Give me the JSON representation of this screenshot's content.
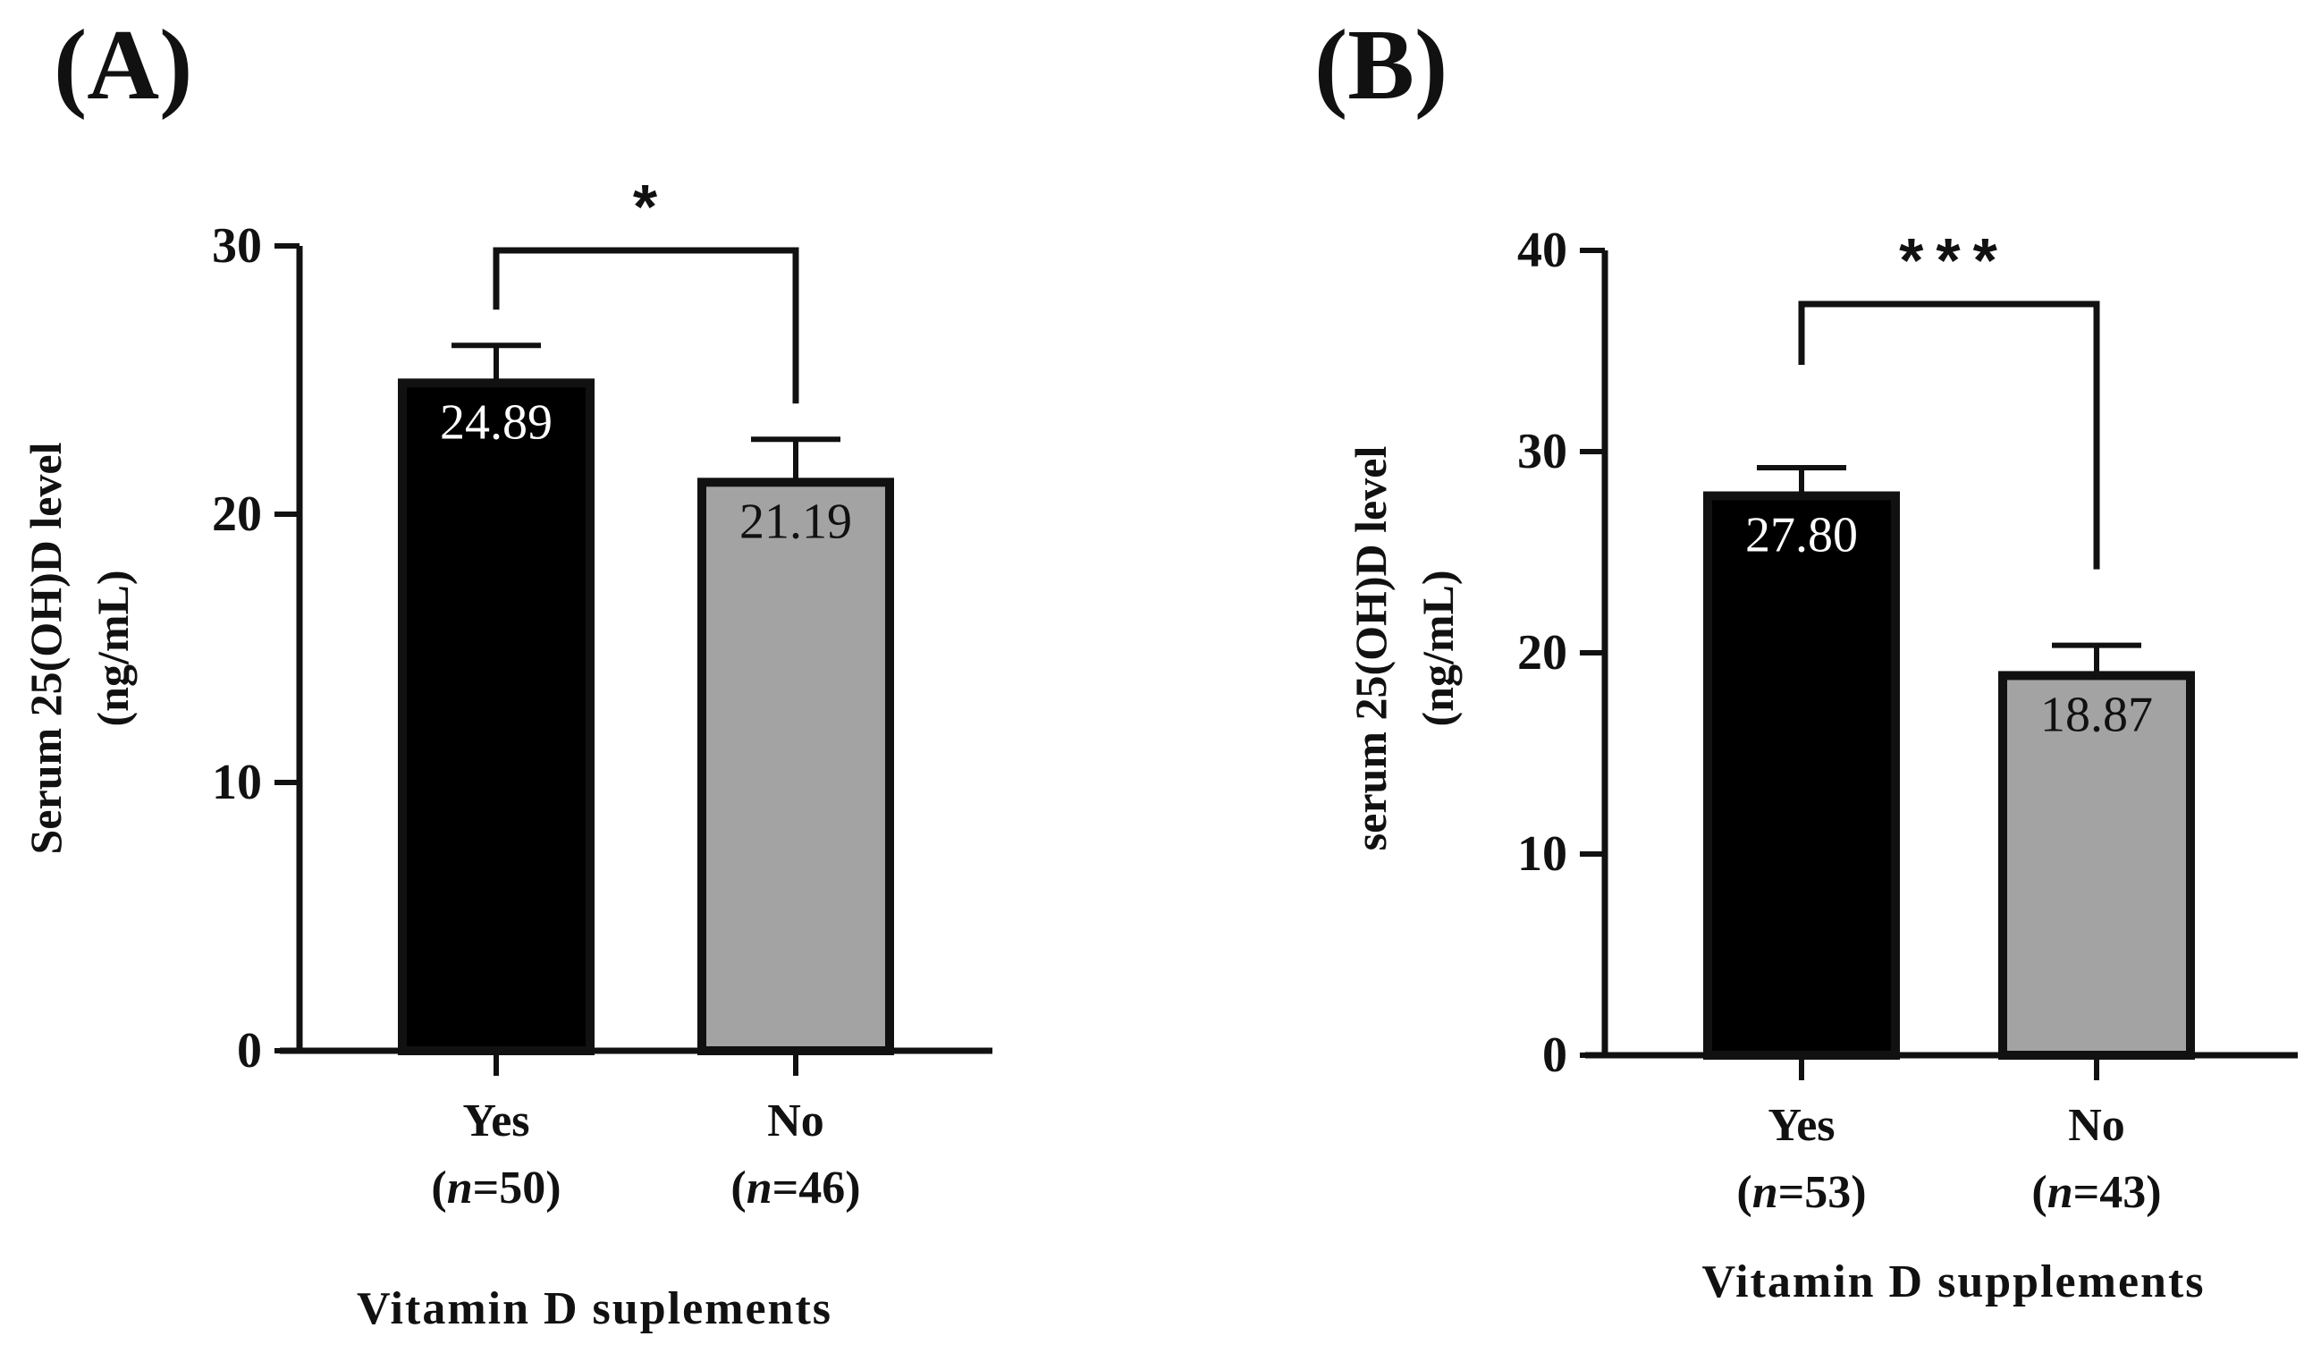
{
  "chart_data": [
    {
      "type": "bar",
      "panel": "(A)",
      "categories": [
        "Yes",
        "No"
      ],
      "sample_sizes": [
        "50",
        "46"
      ],
      "values": [
        24.89,
        21.19
      ],
      "value_labels": [
        "24.89",
        "21.19"
      ],
      "errors": [
        1.4,
        1.6
      ],
      "ylim": [
        0,
        30
      ],
      "yticks": [
        0,
        10,
        20,
        30
      ],
      "ylabel_line1": "Serum 25(OH)D level",
      "ylabel_line2": "(ng/mL)",
      "xlabel": "Vitamin D suplements",
      "significance": "*",
      "bar_colors": [
        "#000000",
        "#a3a3a3"
      ],
      "label_colors": [
        "#ffffff",
        "#111111"
      ]
    },
    {
      "type": "bar",
      "panel": "(B)",
      "categories": [
        "Yes",
        "No"
      ],
      "sample_sizes": [
        "53",
        "43"
      ],
      "values": [
        27.8,
        18.87
      ],
      "value_labels": [
        "27.80",
        "18.87"
      ],
      "errors": [
        1.4,
        1.5
      ],
      "ylim": [
        0,
        40
      ],
      "yticks": [
        0,
        10,
        20,
        30,
        40
      ],
      "ylabel_line1": "serum 25(OH)D level",
      "ylabel_line2": "(ng/mL)",
      "xlabel": "Vitamin D supplements",
      "significance": "***",
      "bar_colors": [
        "#000000",
        "#a3a3a3"
      ],
      "label_colors": [
        "#ffffff",
        "#111111"
      ]
    }
  ]
}
